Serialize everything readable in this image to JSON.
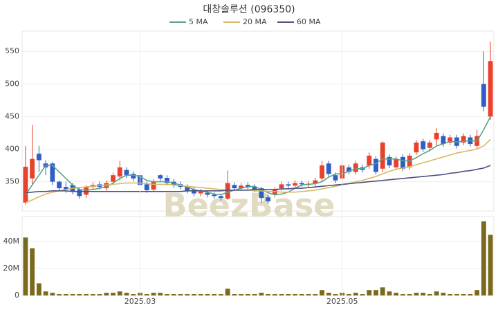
{
  "watermark": "BeezBase",
  "chart_data": [
    {
      "type": "candlestick",
      "title": "대창솔루션 (096350)",
      "categories": [
        null,
        null,
        null,
        null,
        null,
        null,
        null,
        null,
        null,
        null,
        null,
        null,
        null,
        null,
        null,
        null,
        null,
        "2025.03",
        null,
        null,
        null,
        null,
        null,
        null,
        null,
        null,
        null,
        null,
        null,
        null,
        null,
        null,
        null,
        null,
        null,
        null,
        null,
        null,
        null,
        null,
        null,
        null,
        null,
        null,
        null,
        null,
        null,
        "2025.05",
        null,
        null,
        null,
        null,
        null,
        null,
        null,
        null,
        null,
        null,
        null,
        null,
        null,
        null,
        null,
        null,
        null,
        null,
        null,
        null,
        null,
        null
      ],
      "open": [
        318,
        355,
        393,
        378,
        378,
        350,
        342,
        345,
        338,
        330,
        342,
        346,
        340,
        350,
        358,
        368,
        362,
        360,
        346,
        338,
        360,
        356,
        350,
        346,
        342,
        338,
        332,
        333,
        330,
        328,
        324,
        345,
        340,
        345,
        342,
        340,
        326,
        330,
        340,
        346,
        344,
        348,
        345,
        347,
        355,
        378,
        360,
        355,
        372,
        365,
        372,
        375,
        385,
        370,
        388,
        372,
        388,
        372,
        395,
        412,
        402,
        415,
        420,
        410,
        418,
        410,
        418,
        405,
        500,
        450
      ],
      "high": [
        405,
        437,
        405,
        383,
        380,
        352,
        350,
        348,
        342,
        345,
        349,
        350,
        352,
        364,
        382,
        372,
        366,
        372,
        350,
        354,
        362,
        360,
        354,
        350,
        346,
        342,
        339,
        337,
        334,
        332,
        367,
        349,
        348,
        349,
        346,
        342,
        330,
        342,
        350,
        350,
        352,
        352,
        351,
        356,
        382,
        382,
        364,
        380,
        376,
        382,
        376,
        395,
        389,
        412,
        392,
        389,
        392,
        394,
        414,
        416,
        414,
        432,
        424,
        422,
        422,
        424,
        422,
        430,
        550,
        565
      ],
      "low": [
        315,
        345,
        365,
        360,
        345,
        336,
        333,
        331,
        324,
        325,
        338,
        338,
        336,
        346,
        352,
        356,
        351,
        342,
        333,
        334,
        351,
        344,
        341,
        338,
        332,
        328,
        328,
        326,
        324,
        321,
        322,
        336,
        336,
        338,
        334,
        318,
        316,
        326,
        336,
        340,
        340,
        342,
        341,
        343,
        350,
        358,
        348,
        350,
        361,
        361,
        364,
        370,
        361,
        365,
        371,
        368,
        366,
        368,
        391,
        396,
        398,
        405,
        404,
        406,
        401,
        406,
        404,
        400,
        458,
        445
      ],
      "close": [
        373,
        385,
        383,
        372,
        350,
        340,
        338,
        335,
        328,
        342,
        345,
        342,
        348,
        360,
        372,
        360,
        355,
        345,
        337,
        350,
        355,
        348,
        345,
        342,
        336,
        332,
        335,
        330,
        328,
        325,
        348,
        340,
        344,
        342,
        338,
        325,
        320,
        338,
        346,
        344,
        348,
        346,
        347,
        352,
        375,
        362,
        352,
        375,
        365,
        378,
        368,
        390,
        365,
        410,
        375,
        385,
        370,
        390,
        410,
        400,
        410,
        425,
        408,
        418,
        405,
        420,
        408,
        420,
        465,
        535
      ],
      "up_color": "#e8412c",
      "down_color": "#2f5ec4",
      "series": [
        {
          "name": "5 MA",
          "color": "#5aa38a",
          "values": [
            330,
            345,
            360,
            375,
            375,
            365,
            355,
            345,
            338,
            337,
            338,
            340,
            342,
            348,
            355,
            360,
            360,
            358,
            352,
            350,
            350,
            350,
            348,
            345,
            342,
            338,
            336,
            334,
            331,
            330,
            334,
            337,
            340,
            342,
            343,
            338,
            333,
            330,
            331,
            334,
            340,
            345,
            346,
            347,
            350,
            357,
            362,
            362,
            366,
            370,
            370,
            375,
            378,
            385,
            385,
            385,
            382,
            382,
            387,
            393,
            398,
            405,
            408,
            412,
            411,
            412,
            413,
            412,
            430,
            450
          ]
        },
        {
          "name": "20 MA",
          "color": "#d9b860",
          "values": [
            318,
            322,
            327,
            331,
            334,
            336,
            338,
            340,
            341,
            342,
            343,
            344,
            345,
            346,
            347,
            348,
            348,
            348,
            347,
            346,
            346,
            346,
            345,
            344,
            343,
            342,
            341,
            340,
            339,
            338,
            337,
            337,
            337,
            337,
            336,
            336,
            335,
            335,
            334,
            334,
            334,
            335,
            336,
            337,
            339,
            341,
            343,
            345,
            347,
            350,
            352,
            355,
            358,
            362,
            366,
            369,
            371,
            373,
            376,
            379,
            382,
            385,
            388,
            391,
            394,
            396,
            398,
            400,
            405,
            415
          ]
        },
        {
          "name": "60 MA",
          "color": "#4a5080",
          "values": [
            333,
            334,
            335,
            335,
            336,
            336,
            336,
            335,
            335,
            335,
            335,
            335,
            335,
            335,
            335,
            335,
            335,
            335,
            335,
            335,
            335,
            335,
            335,
            335,
            336,
            336,
            336,
            336,
            336,
            336,
            337,
            337,
            337,
            337,
            338,
            338,
            338,
            338,
            339,
            339,
            340,
            340,
            341,
            342,
            343,
            344,
            345,
            346,
            347,
            348,
            349,
            350,
            351,
            352,
            353,
            354,
            355,
            356,
            357,
            358,
            359,
            360,
            361,
            363,
            364,
            366,
            367,
            369,
            371,
            375
          ]
        }
      ],
      "ylim": [
        305,
        581
      ],
      "yticks": [
        350,
        400,
        450,
        500,
        550
      ],
      "grid": true
    },
    {
      "type": "bar",
      "color": "#7a6a1e",
      "values": [
        43000000,
        35000000,
        9000000,
        3000000,
        2000000,
        1000000,
        1000000,
        1000000,
        1000000,
        1000000,
        1000000,
        1000000,
        2000000,
        2000000,
        3000000,
        2000000,
        1000000,
        2000000,
        1000000,
        2000000,
        2000000,
        1000000,
        1000000,
        1000000,
        1000000,
        1000000,
        1000000,
        1000000,
        1000000,
        1000000,
        5000000,
        1000000,
        1000000,
        1000000,
        1000000,
        2000000,
        1000000,
        1000000,
        1000000,
        1000000,
        1000000,
        1000000,
        1000000,
        1000000,
        4000000,
        2000000,
        1000000,
        2000000,
        1000000,
        2000000,
        1000000,
        4000000,
        4000000,
        6000000,
        3000000,
        2000000,
        1000000,
        1000000,
        2000000,
        2000000,
        1000000,
        3000000,
        2000000,
        1000000,
        1000000,
        1000000,
        1000000,
        4000000,
        55000000,
        45000000
      ],
      "ylim": [
        0,
        58500000
      ],
      "yticks": [
        0,
        {
          "value": 20000000,
          "label": "20M"
        },
        {
          "value": 40000000,
          "label": "40M"
        }
      ],
      "grid": true
    }
  ]
}
